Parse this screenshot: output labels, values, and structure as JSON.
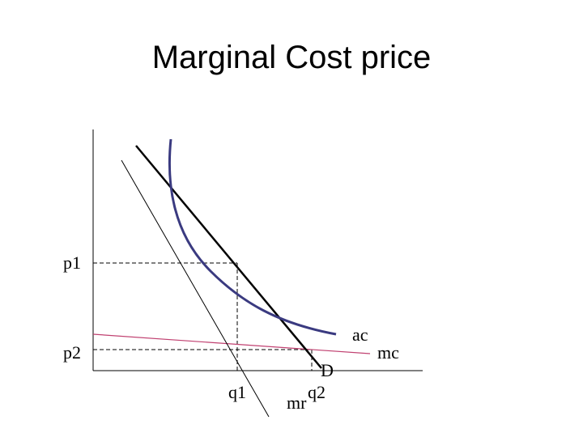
{
  "header": {
    "title": "Marginal Cost price"
  },
  "axis_labels": {
    "p1": "p1",
    "p2": "p2",
    "q1": "q1",
    "q2": "q2"
  },
  "curve_labels": {
    "demand": "D",
    "marginal_revenue": "mr",
    "average_cost": "ac",
    "marginal_cost": "mc"
  }
}
